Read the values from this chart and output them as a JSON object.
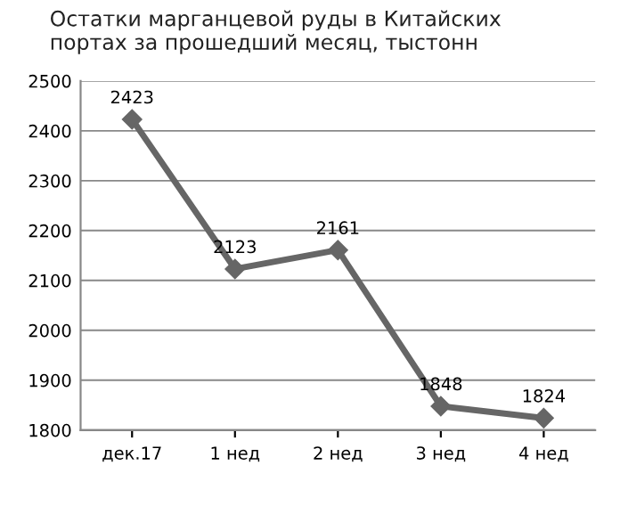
{
  "chart_data": {
    "type": "line",
    "title": "Остатки марганцевой руды в Китайских\nпортах за прошедший месяц, тыстонн",
    "categories": [
      "дек.17",
      "1 нед",
      "2 нед",
      "3 нед",
      "4 нед"
    ],
    "series": [
      {
        "color": "#666666",
        "values": [
          2423,
          2123,
          2161,
          1848,
          1824
        ]
      }
    ],
    "ylim": [
      1800,
      2500
    ],
    "yticks": [
      1800,
      1900,
      2000,
      2100,
      2200,
      2300,
      2400,
      2500
    ],
    "grid": "y",
    "marker": "diamond",
    "line_style": "solid",
    "data_labels": true,
    "legend": false
  }
}
